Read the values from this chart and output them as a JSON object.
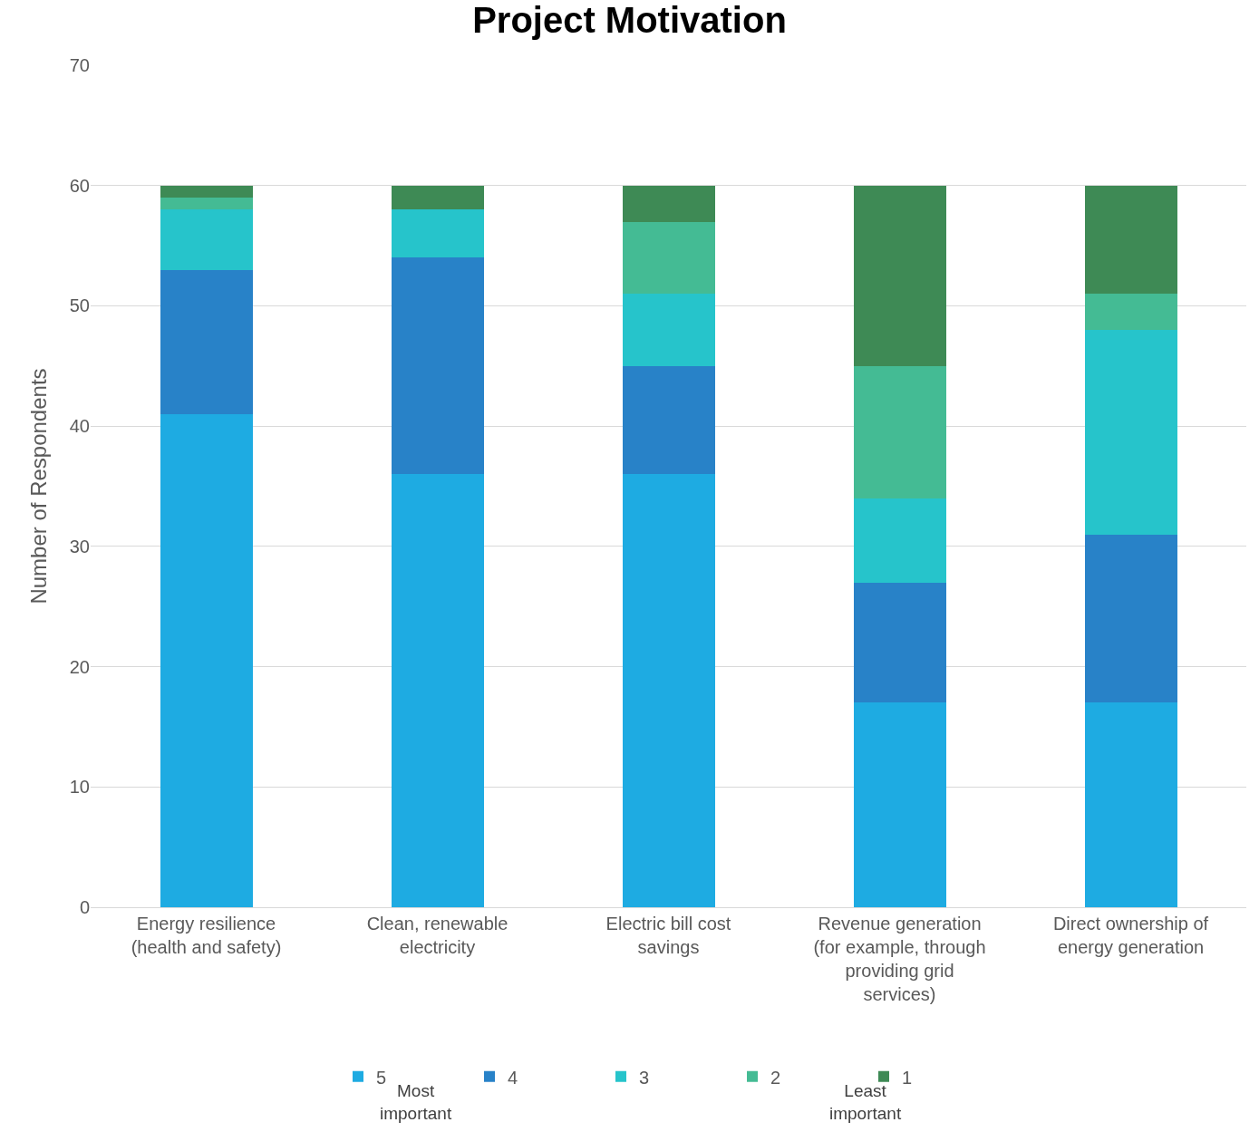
{
  "chart_data": {
    "type": "bar",
    "stacked": true,
    "title": "Project Motivation",
    "ylabel": "Number of Respondents",
    "categories": [
      "Energy resilience (health and safety)",
      "Clean, renewable electricity",
      "Electric bill cost savings",
      "Revenue generation (for example, through providing grid services)",
      "Direct ownership of energy generation"
    ],
    "series": [
      {
        "name": "5",
        "color": "#1eabe2",
        "values": [
          41,
          36,
          36,
          17,
          17
        ]
      },
      {
        "name": "4",
        "color": "#2882c8",
        "values": [
          12,
          18,
          9,
          10,
          14
        ]
      },
      {
        "name": "3",
        "color": "#26c4cb",
        "values": [
          5,
          4,
          6,
          7,
          17
        ]
      },
      {
        "name": "2",
        "color": "#44bb94",
        "values": [
          1,
          0,
          6,
          11,
          3
        ]
      },
      {
        "name": "1",
        "color": "#3e8a55",
        "values": [
          1,
          2,
          3,
          15,
          9
        ]
      }
    ],
    "annotations": [
      "Most important",
      "Least important"
    ],
    "ylim": [
      0,
      70
    ],
    "yticks": [
      0,
      10,
      20,
      30,
      40,
      50,
      60,
      70
    ],
    "grid": "y",
    "legend": "bottom"
  }
}
